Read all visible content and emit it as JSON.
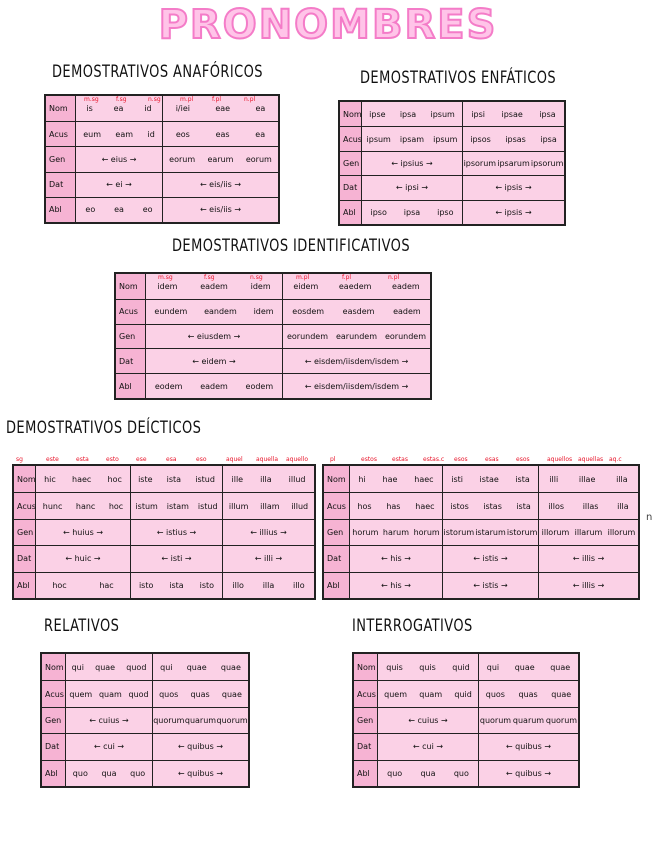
{
  "title": "PRONOMBRES",
  "sections": {
    "anaforicos": {
      "heading": "DEMOSTRATIVOS ANAFÓRICOS",
      "tags": [
        "m.sg",
        "f.sg",
        "n.sg",
        "m.pl",
        "f.pl",
        "n.pl"
      ],
      "rows": [
        {
          "label": "Nom",
          "c1": [
            "is",
            "ea",
            "id"
          ],
          "c2": [
            "i/iei",
            "eae",
            "ea"
          ]
        },
        {
          "label": "Acus",
          "c1": [
            "eum",
            "eam",
            "id"
          ],
          "c2": [
            "eos",
            "eas",
            "ea"
          ]
        },
        {
          "label": "Gen",
          "c1": [
            "← eius →"
          ],
          "c2": [
            "eorum",
            "earum",
            "eorum"
          ]
        },
        {
          "label": "Dat",
          "c1": [
            "← ei →"
          ],
          "c2": [
            "← eis/iis →"
          ]
        },
        {
          "label": "Abl",
          "c1": [
            "eo",
            "ea",
            "eo"
          ],
          "c2": [
            "← eis/iis →"
          ]
        }
      ]
    },
    "enfaticos": {
      "heading": "DEMOSTRATIVOS ENFÁTICOS",
      "rows": [
        {
          "label": "Nom",
          "c1": [
            "ipse",
            "ipsa",
            "ipsum"
          ],
          "c2": [
            "ipsi",
            "ipsae",
            "ipsa"
          ]
        },
        {
          "label": "Acus",
          "c1": [
            "ipsum",
            "ipsam",
            "ipsum"
          ],
          "c2": [
            "ipsos",
            "ipsas",
            "ipsa"
          ]
        },
        {
          "label": "Gen",
          "c1": [
            "← ipsius →"
          ],
          "c2": [
            "ipsorum",
            "ipsarum",
            "ipsorum"
          ]
        },
        {
          "label": "Dat",
          "c1": [
            "← ipsi →"
          ],
          "c2": [
            "← ipsis →"
          ]
        },
        {
          "label": "Abl",
          "c1": [
            "ipso",
            "ipsa",
            "ipso"
          ],
          "c2": [
            "← ipsis →"
          ]
        }
      ]
    },
    "identificativos": {
      "heading": "DEMOSTRATIVOS IDENTIFICATIVOS",
      "tags": [
        "m.sg",
        "f.sg",
        "n.sg",
        "m.pl",
        "f.pl",
        "n.pl"
      ],
      "rows": [
        {
          "label": "Nom",
          "c1": [
            "idem",
            "eadem",
            "idem"
          ],
          "c2": [
            "eidem",
            "eaedem",
            "eadem"
          ]
        },
        {
          "label": "Acus",
          "c1": [
            "eundem",
            "eandem",
            "idem"
          ],
          "c2": [
            "eosdem",
            "easdem",
            "eadem"
          ]
        },
        {
          "label": "Gen",
          "c1": [
            "← eiusdem →"
          ],
          "c2": [
            "eorundem",
            "earundem",
            "eorundem"
          ]
        },
        {
          "label": "Dat",
          "c1": [
            "← eidem →"
          ],
          "c2": [
            "← eisdem/iisdem/isdem →"
          ]
        },
        {
          "label": "Abl",
          "c1": [
            "eodem",
            "eadem",
            "eodem"
          ],
          "c2": [
            "← eisdem/iisdem/isdem →"
          ]
        }
      ]
    },
    "decticos": {
      "heading": "DEMOSTRATIVOS DEÍCTICOS",
      "tags1": [
        "sg",
        "este",
        "esta",
        "esto",
        "ese",
        "esa",
        "eso",
        "aquel",
        "aquella",
        "aquello"
      ],
      "tags2": [
        "pl",
        "estos",
        "estas",
        "estas.c",
        "esos",
        "esas",
        "esos",
        "aquellos",
        "aquellas",
        "aq.c"
      ],
      "t1": [
        {
          "label": "Nom",
          "c1": [
            "hic",
            "haec",
            "hoc"
          ],
          "c2": [
            "iste",
            "ista",
            "istud"
          ],
          "c3": [
            "ille",
            "illa",
            "illud"
          ]
        },
        {
          "label": "Acus",
          "c1": [
            "hunc",
            "hanc",
            "hoc"
          ],
          "c2": [
            "istum",
            "istam",
            "istud"
          ],
          "c3": [
            "illum",
            "illam",
            "illud"
          ]
        },
        {
          "label": "Gen",
          "c1": [
            "← huius →"
          ],
          "c2": [
            "← istius →"
          ],
          "c3": [
            "← illius →"
          ]
        },
        {
          "label": "Dat",
          "c1": [
            "← huic →"
          ],
          "c2": [
            "← isti →"
          ],
          "c3": [
            "← illi →"
          ]
        },
        {
          "label": "Abl",
          "c1": [
            "hoc",
            "hac"
          ],
          "c2": [
            "isto",
            "ista",
            "isto"
          ],
          "c3": [
            "illo",
            "illa",
            "illo"
          ]
        }
      ],
      "t2": [
        {
          "label": "Nom",
          "c1": [
            "hi",
            "hae",
            "haec"
          ],
          "c2": [
            "isti",
            "istae",
            "ista"
          ],
          "c3": [
            "illi",
            "illae",
            "illa"
          ]
        },
        {
          "label": "Acus",
          "c1": [
            "hos",
            "has",
            "haec"
          ],
          "c2": [
            "istos",
            "istas",
            "ista"
          ],
          "c3": [
            "illos",
            "illas",
            "illa"
          ]
        },
        {
          "label": "Gen",
          "c1": [
            "horum",
            "harum",
            "horum"
          ],
          "c2": [
            "istorum",
            "istarum",
            "istorum"
          ],
          "c3": [
            "illorum",
            "illarum",
            "illorum"
          ]
        },
        {
          "label": "Dat",
          "c1": [
            "← his →"
          ],
          "c2": [
            "← istis →"
          ],
          "c3": [
            "← illis →"
          ]
        },
        {
          "label": "Abl",
          "c1": [
            "← his →"
          ],
          "c2": [
            "← istis →"
          ],
          "c3": [
            "← illis →"
          ]
        }
      ],
      "stray": "n"
    },
    "relativos": {
      "heading": "RELATIVOS",
      "rows": [
        {
          "label": "Nom",
          "c1": [
            "qui",
            "quae",
            "quod"
          ],
          "c2": [
            "qui",
            "quae",
            "quae"
          ]
        },
        {
          "label": "Acus",
          "c1": [
            "quem",
            "quam",
            "quod"
          ],
          "c2": [
            "quos",
            "quas",
            "quae"
          ]
        },
        {
          "label": "Gen",
          "c1": [
            "← cuius →"
          ],
          "c2": [
            "quorum",
            "quarum",
            "quorum"
          ]
        },
        {
          "label": "Dat",
          "c1": [
            "← cui →"
          ],
          "c2": [
            "← quibus →"
          ]
        },
        {
          "label": "Abl",
          "c1": [
            "quo",
            "qua",
            "quo"
          ],
          "c2": [
            "← quibus →"
          ]
        }
      ]
    },
    "interrogativos": {
      "heading": "INTERROGATIVOS",
      "rows": [
        {
          "label": "Nom",
          "c1": [
            "quis",
            "quis",
            "quid"
          ],
          "c2": [
            "qui",
            "quae",
            "quae"
          ]
        },
        {
          "label": "Acus",
          "c1": [
            "quem",
            "quam",
            "quid"
          ],
          "c2": [
            "quos",
            "quas",
            "quae"
          ]
        },
        {
          "label": "Gen",
          "c1": [
            "← cuius →"
          ],
          "c2": [
            "quorum",
            "quarum",
            "quorum"
          ]
        },
        {
          "label": "Dat",
          "c1": [
            "← cui →"
          ],
          "c2": [
            "← quibus →"
          ]
        },
        {
          "label": "Abl",
          "c1": [
            "quo",
            "qua",
            "quo"
          ],
          "c2": [
            "← quibus →"
          ]
        }
      ]
    }
  }
}
